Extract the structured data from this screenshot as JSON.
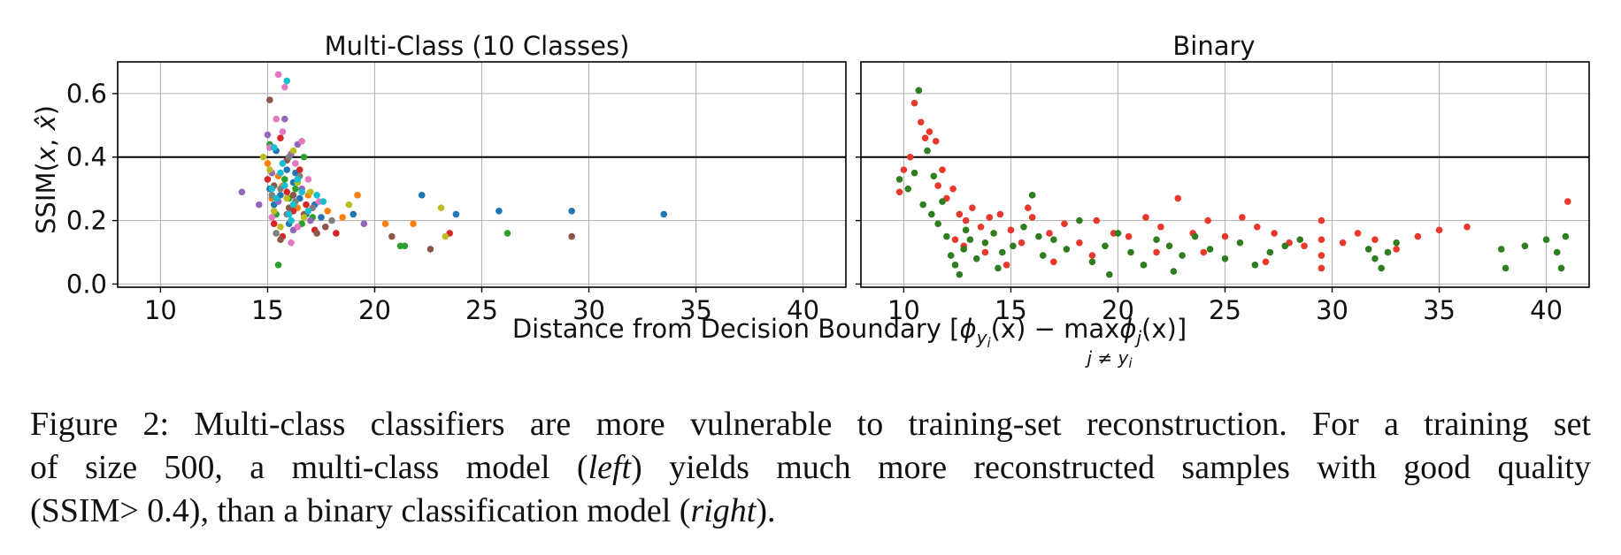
{
  "figure": {
    "xlabel": "Distance from Decision Boundary [ϕ_{y_i}(x) − max_{j≠y_i} ϕ_j(x)]",
    "xlabel_parts": {
      "prefix": "Distance from Decision Boundary [",
      "phi1": "ϕ",
      "sub1": "y",
      "subsub1": "i",
      "args1": "(x) − ",
      "max": "max",
      "phi2": "ϕ",
      "sub2": "j",
      "args2": "(x)]",
      "under": "j ≠ y",
      "under_sub": "i"
    },
    "ylabel": "SSIM(x, x̂)",
    "ylabel_parts": {
      "prefix": "SSIM(",
      "x1": "x",
      "comma": ", ",
      "x2": "x̂",
      "suffix": ")"
    },
    "threshold": 0.4,
    "threshold_color": "#000000"
  },
  "caption": {
    "line1": "Figure 2: Multi-class classifiers are more vulnerable to training-set reconstruction. For a training set",
    "line2_prefix": "of size 500, a multi-class model (",
    "line2_em": "left",
    "line2_suffix": ") yields much more reconstructed samples with good quality",
    "line3_prefix": "(SSIM> 0.4), than a binary classification model (",
    "line3_em": "right",
    "line3_suffix": ")."
  },
  "chart_data": [
    {
      "type": "scatter",
      "title": "Multi-Class (10 Classes)",
      "xlim": [
        8,
        42
      ],
      "ylim": [
        -0.01,
        0.7
      ],
      "xticks": [
        10,
        15,
        20,
        25,
        30,
        35,
        40
      ],
      "yticks": [
        0.0,
        0.2,
        0.4,
        0.6
      ],
      "ytick_labels": [
        "0.0",
        "0.2",
        "0.4",
        "0.6"
      ],
      "grid": true,
      "series": [
        {
          "color": "#1f77b4",
          "points": [
            [
              15.6,
              0.28
            ],
            [
              16.2,
              0.32
            ],
            [
              15.3,
              0.25
            ],
            [
              16.8,
              0.22
            ],
            [
              17.5,
              0.21
            ],
            [
              15.9,
              0.36
            ],
            [
              16.5,
              0.27
            ],
            [
              19.0,
              0.22
            ],
            [
              22.2,
              0.28
            ],
            [
              23.8,
              0.22
            ],
            [
              25.8,
              0.23
            ],
            [
              29.2,
              0.23
            ],
            [
              33.5,
              0.22
            ],
            [
              15.1,
              0.3
            ],
            [
              16.0,
              0.19
            ],
            [
              17.2,
              0.25
            ],
            [
              15.4,
              0.42
            ],
            [
              16.3,
              0.35
            ]
          ]
        },
        {
          "color": "#ff7f0e",
          "points": [
            [
              15.2,
              0.27
            ],
            [
              16.4,
              0.24
            ],
            [
              15.7,
              0.31
            ],
            [
              17.8,
              0.23
            ],
            [
              19.2,
              0.28
            ],
            [
              20.5,
              0.19
            ],
            [
              21.8,
              0.19
            ],
            [
              15.0,
              0.38
            ],
            [
              16.1,
              0.2
            ],
            [
              18.5,
              0.21
            ],
            [
              15.5,
              0.34
            ],
            [
              16.9,
              0.28
            ]
          ]
        },
        {
          "color": "#2ca02c",
          "points": [
            [
              15.4,
              0.22
            ],
            [
              16.0,
              0.27
            ],
            [
              15.8,
              0.33
            ],
            [
              16.6,
              0.19
            ],
            [
              21.2,
              0.12
            ],
            [
              21.4,
              0.12
            ],
            [
              26.2,
              0.16
            ],
            [
              15.1,
              0.44
            ],
            [
              16.3,
              0.3
            ],
            [
              17.1,
              0.21
            ],
            [
              15.5,
              0.06
            ],
            [
              16.7,
              0.4
            ]
          ]
        },
        {
          "color": "#d62728",
          "points": [
            [
              15.3,
              0.19
            ],
            [
              16.2,
              0.23
            ],
            [
              15.9,
              0.29
            ],
            [
              17.2,
              0.17
            ],
            [
              18.2,
              0.16
            ],
            [
              23.5,
              0.16
            ],
            [
              15.0,
              0.33
            ],
            [
              16.5,
              0.36
            ],
            [
              15.6,
              0.46
            ],
            [
              16.8,
              0.25
            ],
            [
              15.7,
              0.15
            ]
          ]
        },
        {
          "color": "#9467bd",
          "points": [
            [
              13.8,
              0.29
            ],
            [
              14.6,
              0.25
            ],
            [
              15.2,
              0.35
            ],
            [
              16.1,
              0.41
            ],
            [
              15.5,
              0.26
            ],
            [
              16.6,
              0.3
            ],
            [
              17.0,
              0.2
            ],
            [
              19.5,
              0.19
            ],
            [
              15.0,
              0.47
            ],
            [
              16.2,
              0.17
            ],
            [
              15.8,
              0.52
            ],
            [
              16.4,
              0.44
            ]
          ]
        },
        {
          "color": "#8c564b",
          "points": [
            [
              15.3,
              0.31
            ],
            [
              16.0,
              0.24
            ],
            [
              15.6,
              0.14
            ],
            [
              16.7,
              0.22
            ],
            [
              17.7,
              0.18
            ],
            [
              20.8,
              0.15
            ],
            [
              22.6,
              0.11
            ],
            [
              29.2,
              0.15
            ],
            [
              15.1,
              0.58
            ],
            [
              16.2,
              0.28
            ],
            [
              15.9,
              0.39
            ],
            [
              17.3,
              0.16
            ]
          ]
        },
        {
          "color": "#e377c2",
          "points": [
            [
              15.1,
              0.43
            ],
            [
              15.7,
              0.48
            ],
            [
              16.3,
              0.38
            ],
            [
              15.4,
              0.52
            ],
            [
              16.6,
              0.45
            ],
            [
              15.2,
              0.21
            ],
            [
              16.1,
              0.13
            ],
            [
              17.4,
              0.26
            ],
            [
              15.8,
              0.62
            ],
            [
              16.9,
              0.33
            ],
            [
              15.5,
              0.66
            ],
            [
              16.4,
              0.18
            ]
          ]
        },
        {
          "color": "#7f7f7f",
          "points": [
            [
              15.2,
              0.28
            ],
            [
              15.9,
              0.22
            ],
            [
              16.5,
              0.34
            ],
            [
              15.6,
              0.3
            ],
            [
              17.1,
              0.24
            ],
            [
              16.3,
              0.26
            ],
            [
              18.0,
              0.2
            ],
            [
              15.4,
              0.16
            ],
            [
              16.0,
              0.4
            ]
          ]
        },
        {
          "color": "#bcbd22",
          "points": [
            [
              14.8,
              0.4
            ],
            [
              15.3,
              0.23
            ],
            [
              15.9,
              0.27
            ],
            [
              16.4,
              0.32
            ],
            [
              15.6,
              0.18
            ],
            [
              17.0,
              0.29
            ],
            [
              18.8,
              0.25
            ],
            [
              23.3,
              0.15
            ],
            [
              23.1,
              0.24
            ],
            [
              15.1,
              0.36
            ],
            [
              16.2,
              0.42
            ],
            [
              16.7,
              0.21
            ]
          ]
        },
        {
          "color": "#17becf",
          "points": [
            [
              15.4,
              0.27
            ],
            [
              15.8,
              0.31
            ],
            [
              16.2,
              0.25
            ],
            [
              16.6,
              0.29
            ],
            [
              15.6,
              0.35
            ],
            [
              16.9,
              0.23
            ],
            [
              17.3,
              0.28
            ],
            [
              15.2,
              0.3
            ],
            [
              16.0,
              0.22
            ],
            [
              16.4,
              0.33
            ],
            [
              15.9,
              0.64
            ],
            [
              15.7,
              0.38
            ],
            [
              17.6,
              0.26
            ],
            [
              16.1,
              0.2
            ],
            [
              15.3,
              0.43
            ]
          ]
        }
      ]
    },
    {
      "type": "scatter",
      "title": "Binary",
      "xlim": [
        8,
        42
      ],
      "ylim": [
        -0.01,
        0.7
      ],
      "xticks": [
        10,
        15,
        20,
        25,
        30,
        35,
        40
      ],
      "yticks": [
        0.0,
        0.2,
        0.4,
        0.6
      ],
      "grid": true,
      "series": [
        {
          "color": "#e8382b",
          "points": [
            [
              9.8,
              0.29
            ],
            [
              10.0,
              0.36
            ],
            [
              10.3,
              0.4
            ],
            [
              10.5,
              0.57
            ],
            [
              10.8,
              0.51
            ],
            [
              11.0,
              0.46
            ],
            [
              11.2,
              0.48
            ],
            [
              11.5,
              0.45
            ],
            [
              11.8,
              0.36
            ],
            [
              12.0,
              0.27
            ],
            [
              12.3,
              0.3
            ],
            [
              12.6,
              0.22
            ],
            [
              12.9,
              0.2
            ],
            [
              13.2,
              0.24
            ],
            [
              13.6,
              0.18
            ],
            [
              14.0,
              0.21
            ],
            [
              14.5,
              0.22
            ],
            [
              15.0,
              0.17
            ],
            [
              15.5,
              0.13
            ],
            [
              16.0,
              0.21
            ],
            [
              16.8,
              0.16
            ],
            [
              17.5,
              0.19
            ],
            [
              18.2,
              0.13
            ],
            [
              19.0,
              0.2
            ],
            [
              19.8,
              0.16
            ],
            [
              20.5,
              0.15
            ],
            [
              21.3,
              0.21
            ],
            [
              22.0,
              0.18
            ],
            [
              22.8,
              0.27
            ],
            [
              23.5,
              0.16
            ],
            [
              24.2,
              0.2
            ],
            [
              25.0,
              0.15
            ],
            [
              25.8,
              0.21
            ],
            [
              26.5,
              0.18
            ],
            [
              27.3,
              0.16
            ],
            [
              28.0,
              0.13
            ],
            [
              28.7,
              0.12
            ],
            [
              29.5,
              0.2
            ],
            [
              29.5,
              0.14
            ],
            [
              29.5,
              0.09
            ],
            [
              29.5,
              0.05
            ],
            [
              30.5,
              0.13
            ],
            [
              31.2,
              0.16
            ],
            [
              32.0,
              0.14
            ],
            [
              33.0,
              0.11
            ],
            [
              34.0,
              0.15
            ],
            [
              35.0,
              0.17
            ],
            [
              36.3,
              0.18
            ],
            [
              41.0,
              0.26
            ],
            [
              12.4,
              0.14
            ],
            [
              13.8,
              0.1
            ],
            [
              15.8,
              0.24
            ],
            [
              18.8,
              0.09
            ],
            [
              21.8,
              0.1
            ],
            [
              24.0,
              0.1
            ],
            [
              26.9,
              0.07
            ],
            [
              11.6,
              0.31
            ],
            [
              12.8,
              0.12
            ],
            [
              14.8,
              0.06
            ],
            [
              17.0,
              0.07
            ]
          ]
        },
        {
          "color": "#2e7d1f",
          "points": [
            [
              9.8,
              0.33
            ],
            [
              10.2,
              0.3
            ],
            [
              10.5,
              0.35
            ],
            [
              10.7,
              0.61
            ],
            [
              10.9,
              0.25
            ],
            [
              11.1,
              0.42
            ],
            [
              11.3,
              0.22
            ],
            [
              11.6,
              0.19
            ],
            [
              11.8,
              0.26
            ],
            [
              12.0,
              0.15
            ],
            [
              12.2,
              0.09
            ],
            [
              12.4,
              0.06
            ],
            [
              12.6,
              0.03
            ],
            [
              12.8,
              0.11
            ],
            [
              13.1,
              0.14
            ],
            [
              13.4,
              0.08
            ],
            [
              13.8,
              0.13
            ],
            [
              14.2,
              0.16
            ],
            [
              14.6,
              0.1
            ],
            [
              15.1,
              0.12
            ],
            [
              15.6,
              0.18
            ],
            [
              16.0,
              0.28
            ],
            [
              16.5,
              0.09
            ],
            [
              17.0,
              0.14
            ],
            [
              17.6,
              0.11
            ],
            [
              18.2,
              0.2
            ],
            [
              18.8,
              0.07
            ],
            [
              19.4,
              0.12
            ],
            [
              20.0,
              0.16
            ],
            [
              20.6,
              0.1
            ],
            [
              21.2,
              0.06
            ],
            [
              21.8,
              0.14
            ],
            [
              22.4,
              0.12
            ],
            [
              23.0,
              0.09
            ],
            [
              23.6,
              0.15
            ],
            [
              24.3,
              0.11
            ],
            [
              25.0,
              0.08
            ],
            [
              25.7,
              0.13
            ],
            [
              26.4,
              0.06
            ],
            [
              27.1,
              0.1
            ],
            [
              27.8,
              0.12
            ],
            [
              28.5,
              0.14
            ],
            [
              31.7,
              0.11
            ],
            [
              32.0,
              0.08
            ],
            [
              32.3,
              0.05
            ],
            [
              32.6,
              0.1
            ],
            [
              33.0,
              0.13
            ],
            [
              37.9,
              0.11
            ],
            [
              38.1,
              0.05
            ],
            [
              39.0,
              0.12
            ],
            [
              40.0,
              0.14
            ],
            [
              40.5,
              0.1
            ],
            [
              40.7,
              0.05
            ],
            [
              40.9,
              0.15
            ],
            [
              11.4,
              0.34
            ],
            [
              12.9,
              0.17
            ],
            [
              14.4,
              0.05
            ],
            [
              16.3,
              0.15
            ],
            [
              19.6,
              0.03
            ],
            [
              22.6,
              0.04
            ]
          ]
        }
      ]
    }
  ]
}
